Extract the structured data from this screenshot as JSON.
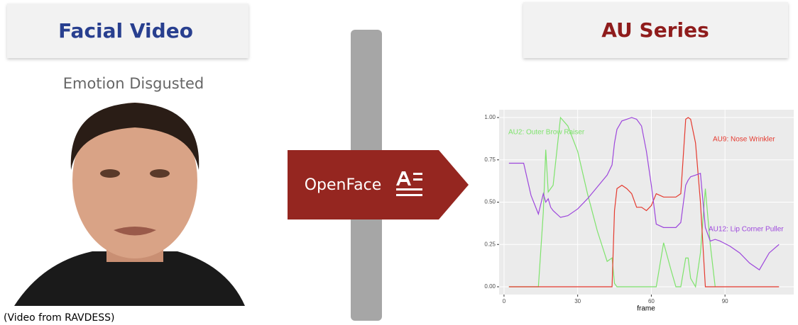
{
  "left": {
    "title": "Facial Video",
    "caption": "Emotion Disgusted",
    "credit": "(Video from RAVDESS)"
  },
  "arrow": {
    "label": "OpenFace"
  },
  "right": {
    "title": "AU Series"
  },
  "chart_data": {
    "type": "line",
    "xlabel": "frame",
    "x": [
      2,
      5,
      8,
      11,
      14,
      16,
      17,
      18,
      19,
      20,
      23,
      26,
      30,
      34,
      38,
      42,
      44,
      45,
      46,
      48,
      50,
      52,
      54,
      56,
      58,
      60,
      62,
      65,
      68,
      70,
      72,
      74,
      75,
      76,
      78,
      80,
      82,
      84,
      86,
      88,
      92,
      96,
      100,
      104,
      108,
      112
    ],
    "series": [
      {
        "name": "AU2: Outer Brow Raiser",
        "color": "#7ee36c",
        "values": [
          0,
          0,
          0,
          0,
          0,
          0.44,
          0.81,
          0.56,
          0.58,
          0.6,
          1.0,
          0.95,
          0.8,
          0.55,
          0.33,
          0.15,
          0.17,
          0.02,
          0,
          0,
          0,
          0,
          0,
          0,
          0,
          0,
          0,
          0.26,
          0.1,
          0,
          0,
          0.17,
          0.17,
          0.05,
          0,
          0.2,
          0.58,
          0.25,
          0,
          null,
          null,
          null,
          null,
          null,
          null,
          null
        ]
      },
      {
        "name": "AU9: Nose Wrinkler",
        "color": "#e53a2f",
        "values": [
          0,
          0,
          0,
          0,
          0,
          0,
          0,
          0,
          0,
          0,
          0,
          0,
          0,
          0,
          0,
          0,
          0,
          0.45,
          0.58,
          0.6,
          0.58,
          0.55,
          0.47,
          0.47,
          0.45,
          0.48,
          0.55,
          0.53,
          0.53,
          0.53,
          0.55,
          0.99,
          1.0,
          0.99,
          0.85,
          0.5,
          0,
          0,
          0,
          0,
          0,
          0,
          0,
          0,
          0,
          0
        ]
      },
      {
        "name": "AU12: Lip Corner Puller",
        "color": "#9d47dc",
        "values": [
          0.73,
          0.73,
          0.73,
          0.54,
          0.43,
          0.55,
          0.5,
          0.52,
          0.47,
          0.45,
          0.41,
          0.42,
          0.46,
          0.52,
          0.59,
          0.66,
          0.72,
          0.85,
          0.93,
          0.98,
          0.99,
          1.0,
          0.99,
          0.95,
          0.8,
          0.6,
          0.37,
          0.35,
          0.35,
          0.35,
          0.38,
          0.6,
          0.63,
          0.65,
          0.66,
          0.67,
          0.35,
          0.27,
          0.28,
          0.27,
          0.24,
          0.2,
          0.14,
          0.1,
          0.2,
          0.25
        ]
      }
    ],
    "xlim": [
      -2,
      118
    ],
    "ylim": [
      -0.046,
      1.046
    ],
    "xticks": [
      0,
      30,
      60,
      90
    ],
    "yticks": [
      {
        "value": 0,
        "label": "0.00"
      },
      {
        "value": 0.25,
        "label": "0.25"
      },
      {
        "value": 0.5,
        "label": "0.50"
      },
      {
        "value": 0.75,
        "label": "0.75"
      },
      {
        "value": 1,
        "label": "1.00"
      }
    ],
    "grid": true
  }
}
